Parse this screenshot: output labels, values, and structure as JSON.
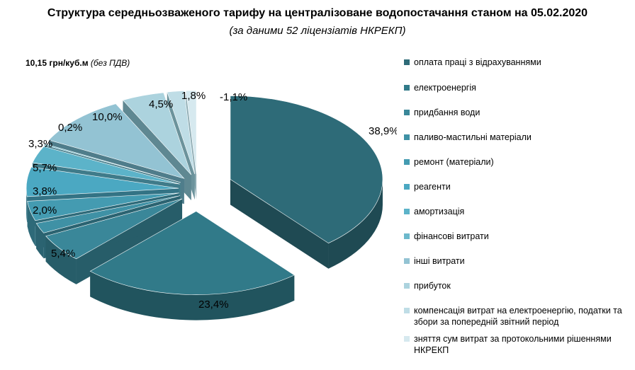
{
  "title": "Структура середньозваженого тарифу на централізоване водопостачання станом на 05.02.2020",
  "subtitle": "(за даними 52 ліцензіатів НКРЕКП)",
  "tariff": {
    "value": "10,15 грн/куб.м",
    "note": "(без ПДВ)"
  },
  "chart_data": {
    "type": "pie",
    "variant": "3d-exploded",
    "legend_position": "right",
    "slices": [
      {
        "label": "оплата праці з відрахуваннями",
        "value": 38.9,
        "display": "38,9%",
        "color": "#2e6b78",
        "side": "#1f4a53"
      },
      {
        "label": "електроенергія",
        "value": 23.4,
        "display": "23,4%",
        "color": "#317a89",
        "side": "#21545e"
      },
      {
        "label": "придбання води",
        "value": 5.4,
        "display": "5,4%",
        "color": "#3a8799",
        "side": "#275d69"
      },
      {
        "label": "паливо-мастильні матеріали",
        "value": 2.0,
        "display": "2,0%",
        "color": "#3f91a5",
        "side": "#2b6371"
      },
      {
        "label": "ремонт (матеріали)",
        "value": 3.8,
        "display": "3,8%",
        "color": "#449bb1",
        "side": "#2e6a79"
      },
      {
        "label": "реагенти",
        "value": 5.7,
        "display": "5,7%",
        "color": "#4ba8c2",
        "side": "#337385"
      },
      {
        "label": "амортизація",
        "value": 3.3,
        "display": "3,3%",
        "color": "#5cb3c9",
        "side": "#3f7b8a"
      },
      {
        "label": "фінансові витрати",
        "value": 0.2,
        "display": "0,2%",
        "color": "#6db9cc",
        "side": "#4b808d"
      },
      {
        "label": "інші витрати",
        "value": 10.0,
        "display": "10,0%",
        "color": "#93c3d3",
        "side": "#4f7d8b"
      },
      {
        "label": "прибуток",
        "value": 4.5,
        "display": "4,5%",
        "color": "#acd3de",
        "side": "#5f8892"
      },
      {
        "label": "компенсація витрат на електроенергію, податки та збори за попередній звітний період",
        "value": 1.8,
        "display": "1,8%",
        "color": "#bfdde6",
        "side": "#6c939c"
      },
      {
        "label": "зняття сум витрат за протокольними рішеннями НКРЕКП",
        "value": -1.1,
        "display": "-1,1%",
        "color": "#d6e9ef",
        "side": "#8aa9b1"
      }
    ]
  }
}
